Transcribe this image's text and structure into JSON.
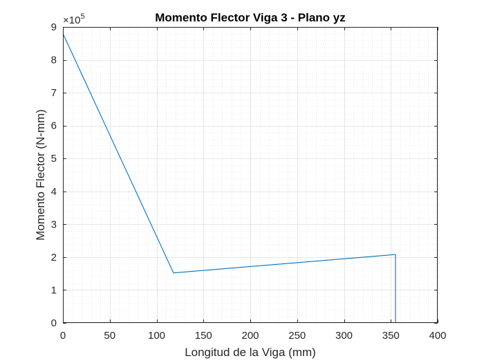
{
  "chart_data": {
    "type": "line",
    "title": "Momento Flector Viga 3 - Plano yz",
    "xlabel": "Longitud de la Viga (mm)",
    "ylabel": "Momento Flector (N-mm)",
    "xlim": [
      0,
      400
    ],
    "ylim": [
      0,
      9
    ],
    "y_multiplier": {
      "base": "×10",
      "exponent": "5"
    },
    "x_ticks": [
      0,
      50,
      100,
      150,
      200,
      250,
      300,
      350,
      400
    ],
    "y_ticks": [
      0,
      1,
      2,
      3,
      4,
      5,
      6,
      7,
      8,
      9
    ],
    "grid": true,
    "minor_grid": true,
    "box": true,
    "series": [
      {
        "color": "#0072BD",
        "x": [
          0,
          118,
          355,
          355
        ],
        "y": [
          8.8,
          1.52,
          2.08,
          0
        ]
      }
    ]
  }
}
